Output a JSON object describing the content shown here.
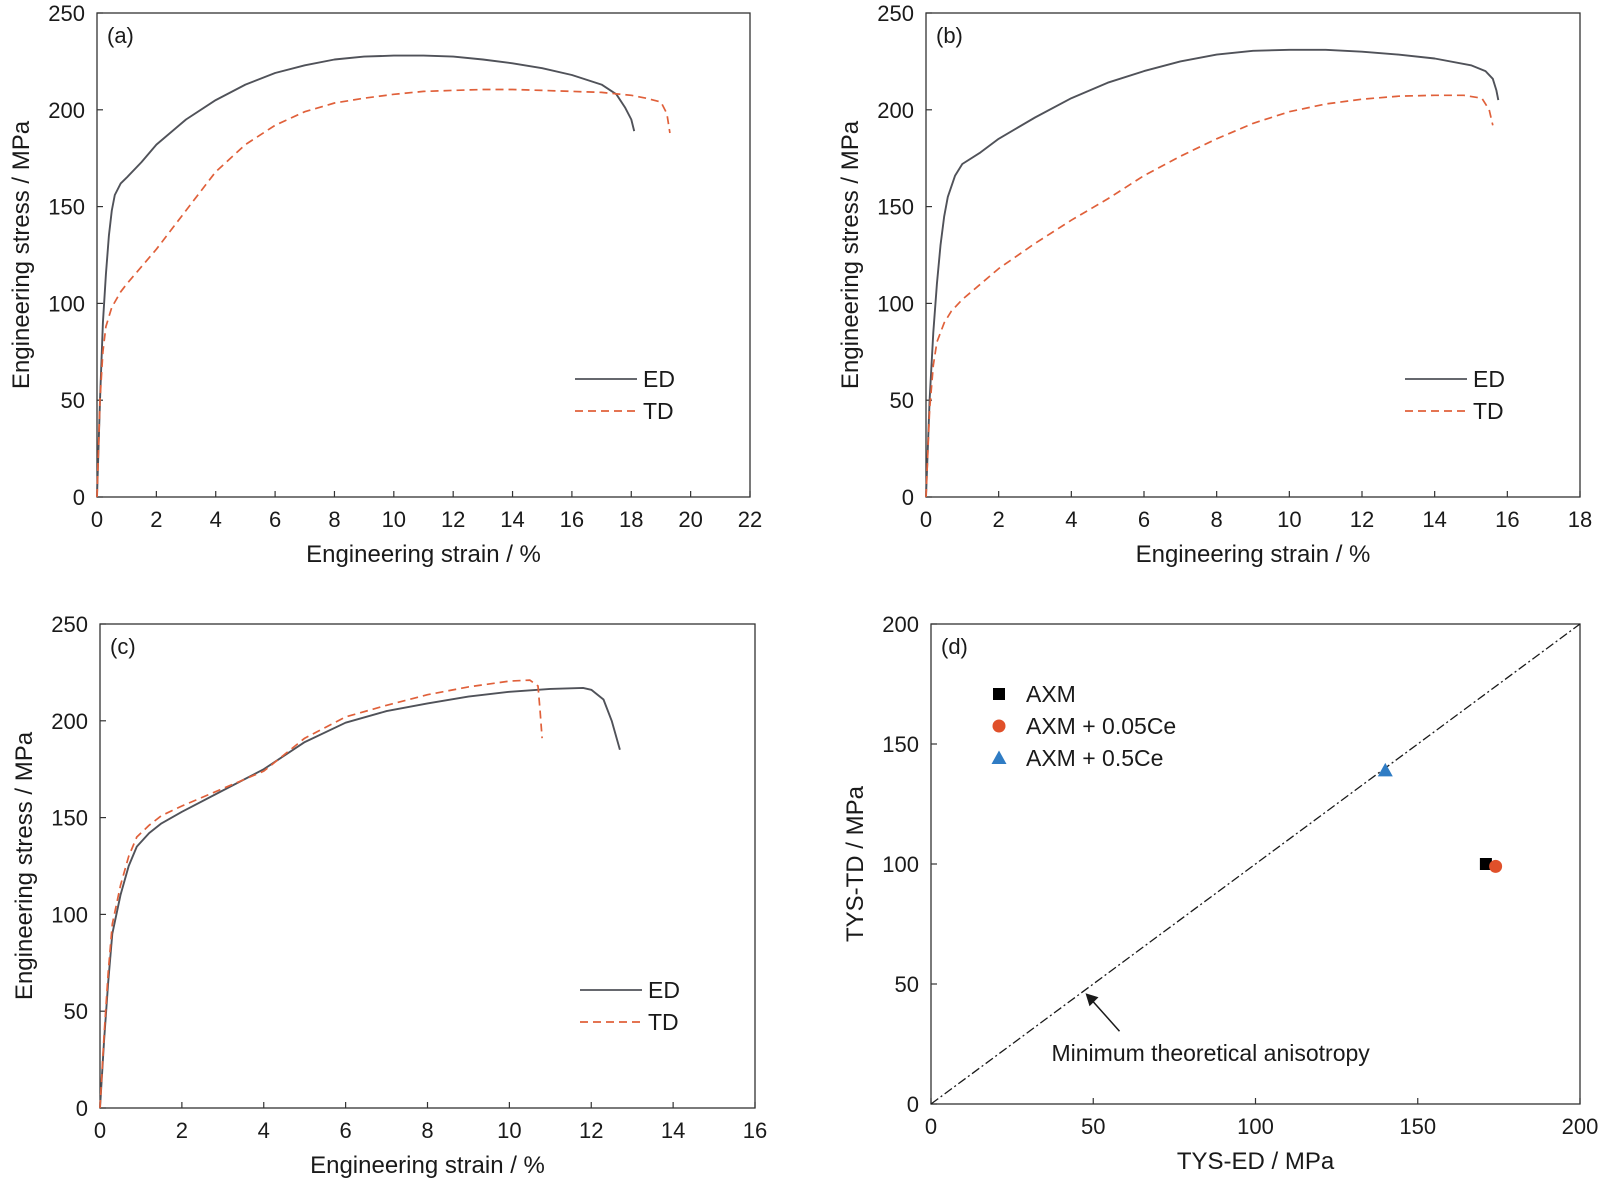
{
  "chart_data": [
    {
      "type": "line",
      "panel": "(a)",
      "xlabel": "Engineering strain / %",
      "ylabel": "Engineering stress / MPa",
      "xlim": [
        0,
        22
      ],
      "ylim": [
        0,
        250
      ],
      "xticks": [
        "0",
        "2",
        "4",
        "6",
        "8",
        "10",
        "12",
        "14",
        "16",
        "18",
        "20",
        "22"
      ],
      "yticks": [
        "0",
        "50",
        "100",
        "150",
        "200",
        "250"
      ],
      "legend_position": "lower-right",
      "series": [
        {
          "name": "ED",
          "color": "#505259",
          "dash": "solid",
          "x": [
            0,
            0.1,
            0.2,
            0.3,
            0.4,
            0.5,
            0.6,
            0.8,
            1.0,
            1.5,
            2.0,
            3.0,
            4.0,
            5.0,
            6.0,
            7.0,
            8.0,
            9.0,
            10.0,
            11.0,
            12.0,
            13.0,
            14.0,
            15.0,
            16.0,
            17.0,
            17.5,
            17.8,
            18.0,
            18.1
          ],
          "y": [
            0,
            50,
            90,
            115,
            135,
            148,
            156,
            162,
            165,
            173,
            182,
            195,
            205,
            213,
            219,
            223,
            226,
            227.5,
            228,
            228,
            227.5,
            226,
            224,
            221.5,
            218,
            213,
            208,
            201,
            195,
            189
          ]
        },
        {
          "name": "TD",
          "color": "#e0603a",
          "dash": "dashed",
          "x": [
            0,
            0.1,
            0.2,
            0.3,
            0.5,
            0.8,
            1.0,
            2.0,
            3.0,
            4.0,
            5.0,
            6.0,
            7.0,
            8.0,
            9.0,
            10.0,
            11.0,
            12.0,
            13.0,
            14.0,
            15.0,
            16.0,
            17.0,
            18.0,
            18.5,
            19.0,
            19.2,
            19.3
          ],
          "y": [
            0,
            50,
            75,
            88,
            98,
            106,
            110,
            128,
            148,
            168,
            182,
            192,
            199,
            203.5,
            206,
            208,
            209.5,
            210,
            210.5,
            210.5,
            210,
            209.5,
            209,
            207.5,
            206,
            204,
            198,
            188
          ]
        }
      ]
    },
    {
      "type": "line",
      "panel": "(b)",
      "xlabel": "Engineering strain / %",
      "ylabel": "Engineering stress / MPa",
      "xlim": [
        0,
        18
      ],
      "ylim": [
        0,
        250
      ],
      "xticks": [
        "0",
        "2",
        "4",
        "6",
        "8",
        "10",
        "12",
        "14",
        "16",
        "18"
      ],
      "yticks": [
        "0",
        "50",
        "100",
        "150",
        "200",
        "250"
      ],
      "legend_position": "lower-right",
      "series": [
        {
          "name": "ED",
          "color": "#505259",
          "dash": "solid",
          "x": [
            0,
            0.1,
            0.2,
            0.3,
            0.4,
            0.5,
            0.6,
            0.8,
            1.0,
            1.5,
            2.0,
            3.0,
            4.0,
            5.0,
            6.0,
            7.0,
            8.0,
            9.0,
            10.0,
            11.0,
            12.0,
            13.0,
            14.0,
            15.0,
            15.4,
            15.6,
            15.7,
            15.75
          ],
          "y": [
            0,
            50,
            85,
            110,
            130,
            145,
            155,
            166,
            172,
            178,
            185,
            196,
            206,
            214,
            220,
            225,
            228.5,
            230.5,
            231,
            231,
            230,
            228.5,
            226.5,
            223,
            220,
            216,
            210,
            205
          ]
        },
        {
          "name": "TD",
          "color": "#e0603a",
          "dash": "dashed",
          "x": [
            0,
            0.1,
            0.2,
            0.3,
            0.5,
            0.7,
            1.0,
            2.0,
            3.0,
            4.0,
            5.0,
            6.0,
            7.0,
            8.0,
            9.0,
            10.0,
            11.0,
            12.0,
            13.0,
            14.0,
            14.8,
            15.3,
            15.5,
            15.6
          ],
          "y": [
            0,
            45,
            68,
            80,
            90,
            96,
            102,
            118,
            131,
            143,
            154,
            166,
            176,
            185,
            193,
            199,
            203,
            205.5,
            207,
            207.5,
            207.5,
            206,
            200,
            192
          ]
        }
      ]
    },
    {
      "type": "line",
      "panel": "(c)",
      "xlabel": "Engineering strain / %",
      "ylabel": "Engineering stress / MPa",
      "xlim": [
        0,
        16
      ],
      "ylim": [
        0,
        250
      ],
      "xticks": [
        "0",
        "2",
        "4",
        "6",
        "8",
        "10",
        "12",
        "14",
        "16"
      ],
      "yticks": [
        "0",
        "50",
        "100",
        "150",
        "200",
        "250"
      ],
      "legend_position": "lower-right",
      "series": [
        {
          "name": "ED",
          "color": "#505259",
          "dash": "solid",
          "x": [
            0,
            0.1,
            0.2,
            0.3,
            0.5,
            0.7,
            0.9,
            1.2,
            1.5,
            2.0,
            3.0,
            4.0,
            5.0,
            6.0,
            7.0,
            8.0,
            9.0,
            10.0,
            11.0,
            11.8,
            12.0,
            12.3,
            12.5,
            12.7
          ],
          "y": [
            0,
            35,
            65,
            90,
            110,
            125,
            135,
            142,
            147,
            153,
            164,
            175,
            189,
            199,
            205,
            209,
            212.5,
            215,
            216.5,
            217,
            216,
            211,
            200,
            185
          ]
        },
        {
          "name": "TD",
          "color": "#e0603a",
          "dash": "dashed",
          "x": [
            0,
            0.1,
            0.2,
            0.3,
            0.5,
            0.7,
            0.9,
            1.2,
            1.5,
            2.0,
            3.0,
            4.0,
            5.0,
            6.0,
            7.0,
            8.0,
            9.0,
            10.0,
            10.5,
            10.7,
            10.75,
            10.8
          ],
          "y": [
            0,
            38,
            70,
            95,
            115,
            130,
            140,
            146,
            151,
            156,
            165,
            174,
            191,
            202,
            208,
            213.5,
            217.5,
            220.5,
            221,
            218,
            205,
            191
          ]
        }
      ]
    },
    {
      "type": "scatter",
      "panel": "(d)",
      "xlabel": "TYS-ED / MPa",
      "ylabel": "TYS-TD / MPa",
      "xlim": [
        0,
        200
      ],
      "ylim": [
        0,
        200
      ],
      "xticks": [
        "0",
        "50",
        "100",
        "150",
        "200"
      ],
      "yticks": [
        "0",
        "50",
        "100",
        "150",
        "200"
      ],
      "legend_position": "top-left",
      "series": [
        {
          "name": "AXM",
          "color": "#000000",
          "marker": "square",
          "x": [
            171
          ],
          "y": [
            100
          ]
        },
        {
          "name": "AXM + 0.05Ce",
          "color": "#e0502a",
          "marker": "circle",
          "x": [
            174
          ],
          "y": [
            99
          ]
        },
        {
          "name": "AXM + 0.5Ce",
          "color": "#2f7cc4",
          "marker": "triangle",
          "x": [
            140
          ],
          "y": [
            139
          ]
        }
      ],
      "reference_line": {
        "x": [
          0,
          200
        ],
        "y": [
          0,
          200
        ],
        "style": "dash-dot",
        "color": "#1a1a1a"
      },
      "annotation": {
        "text": "Minimum theoretical anisotropy",
        "arrow_to": [
          47,
          47
        ]
      }
    }
  ]
}
